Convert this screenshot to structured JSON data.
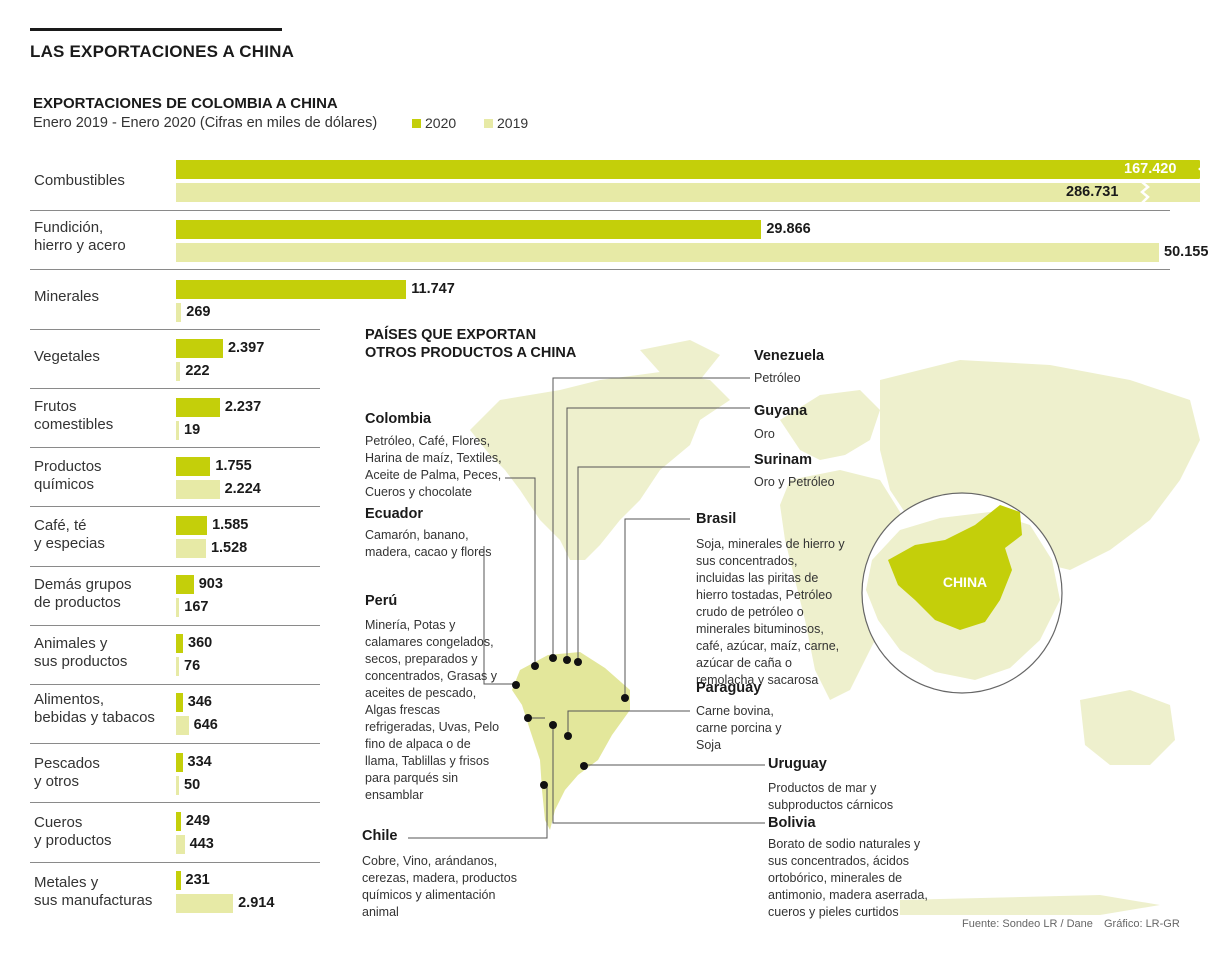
{
  "page_title": "LAS EXPORTACIONES A CHINA",
  "colors": {
    "c2020": "#c4cf0a",
    "c2019": "#e7eaa6",
    "land": "#e8ebb5",
    "china": "#c4cf0a",
    "text": "#1a1a1a"
  },
  "chart_data": {
    "type": "bar",
    "orientation": "horizontal",
    "title": "EXPORTACIONES DE COLOMBIA A CHINA",
    "subtitle": "Enero 2019 - Enero 2020 (Cifras en miles de dólares)",
    "categories": [
      "Combustibles",
      "Fundición,\nhierro y acero",
      "Minerales",
      "Vegetales",
      "Frutos\ncomestibles",
      "Productos\nquímicos",
      "Café, té\ny especias",
      "Demás grupos\nde productos",
      "Animales y\nsus productos",
      "Alimentos,\nbebidas y tabacos",
      "Pescados\ny otros",
      "Cueros\ny productos",
      "Metales y\nsus manufacturas"
    ],
    "series": [
      {
        "name": "2020",
        "values": [
          167420,
          29866,
          11747,
          2397,
          2237,
          1755,
          1585,
          903,
          360,
          346,
          334,
          249,
          231
        ],
        "labels": [
          "167.420",
          "29.866",
          "11.747",
          "2.397",
          "2.237",
          "1.755",
          "1.585",
          "903",
          "360",
          "346",
          "334",
          "249",
          "231"
        ]
      },
      {
        "name": "2019",
        "values": [
          286731,
          50155,
          269,
          222,
          19,
          2224,
          1528,
          167,
          76,
          646,
          50,
          443,
          2914
        ],
        "labels": [
          "286.731",
          "50.155",
          "269",
          "222",
          "19",
          "2.224",
          "1.528",
          "167",
          "76",
          "646",
          "50",
          "443",
          "2.914"
        ]
      }
    ],
    "axis_break_on": [
      "Combustibles"
    ],
    "legend": "top"
  },
  "map": {
    "title": "PAÍSES QUE EXPORTAN\nOTROS PRODUCTOS A CHINA",
    "china_label": "CHINA",
    "countries": [
      {
        "name": "Colombia",
        "products": "Petróleo, Café, Flores, Harina de maíz, Textiles, Aceite de Palma, Peces, Cueros y chocolate"
      },
      {
        "name": "Ecuador",
        "products": "Camarón, banano, madera, cacao y flores"
      },
      {
        "name": "Perú",
        "products": "Minería, Potas y calamares congelados, secos, preparados y concentrados, Grasas y aceites de pescado, Algas frescas refrigeradas, Uvas, Pelo fino de alpaca o de llama, Tablillas y frisos para parqués sin ensamblar"
      },
      {
        "name": "Chile",
        "products": "Cobre, Vino, arándanos, cerezas, madera, productos químicos y alimentación animal"
      },
      {
        "name": "Venezuela",
        "products": "Petróleo"
      },
      {
        "name": "Guyana",
        "products": "Oro"
      },
      {
        "name": "Surinam",
        "products": "Oro y Petróleo"
      },
      {
        "name": "Brasil",
        "products": "Soja, minerales de hierro y sus concentrados, incluidas las piritas de hierro tostadas, Petróleo crudo de petróleo o minerales bituminosos, café, azúcar, maíz, carne, azúcar de caña o remolacha y sacarosa"
      },
      {
        "name": "Paraguay",
        "products": "Carne bovina, carne porcina y Soja"
      },
      {
        "name": "Uruguay",
        "products": "Productos de mar y subproductos cárnicos"
      },
      {
        "name": "Bolivia",
        "products": "Borato de sodio naturales y sus concentrados, ácidos ortobórico, minerales de antimonio, madera aserrada, cueros y pieles curtidos"
      }
    ]
  },
  "footer": {
    "source": "Fuente: Sondeo LR / Dane",
    "credit": "Gráfico: LR-GR"
  }
}
